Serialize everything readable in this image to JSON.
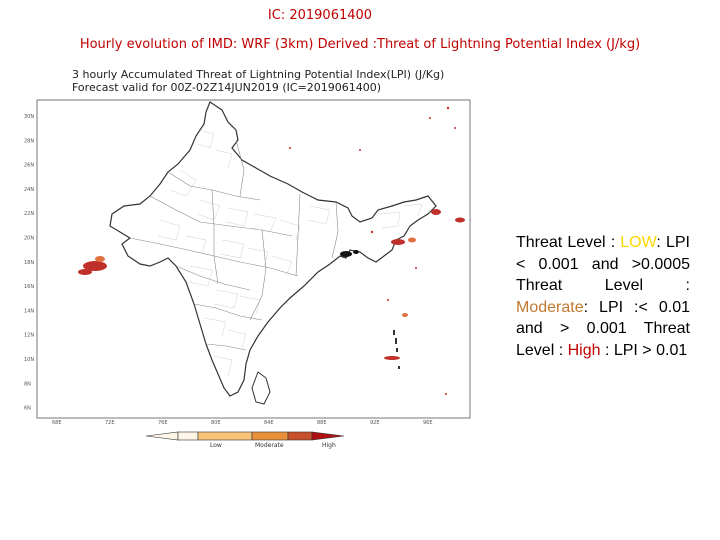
{
  "header": {
    "ic_title": "IC: 2019061400",
    "subtitle": "Hourly evolution of IMD: WRF (3km) Derived :Threat of Lightning Potential Index (J/kg)"
  },
  "map": {
    "title_line1": "3 hourly Accumulated Threat of Lightning Potential Index(LPI) (J/Kg)",
    "title_line2": "Forecast valid for 00Z-02Z14JUN2019  (IC=2019061400)",
    "lat_labels": [
      "30N",
      "28N",
      "26N",
      "24N",
      "22N",
      "20N",
      "18N",
      "16N",
      "14N",
      "12N",
      "10N",
      "8N",
      "6N"
    ],
    "lon_labels": [
      "68E",
      "72E",
      "76E",
      "80E",
      "84E",
      "88E",
      "92E",
      "96E"
    ],
    "colorbar": {
      "labels": [
        "Low",
        "Moderate",
        "High"
      ],
      "colors": [
        "#fdf5e6",
        "#f7c47a",
        "#e8913b",
        "#c8502a",
        "#b01010"
      ]
    }
  },
  "legend": {
    "low_prefix": "Threat Level : ",
    "low_word": "LOW",
    "low_suffix": ":",
    "low_range": "LPI < 0.001 and >0.0005",
    "mod_prefix": "Threat Level :",
    "mod_word": "Moderate",
    "mod_suffix": ": LPI :< 0.01 and > 0.001",
    "high_prefix": "Threat Level : ",
    "high_word": "High",
    "high_suffix": " :",
    "high_range": "LPI > 0.01",
    "colors": {
      "low": "#ffd700",
      "moderate": "#c0782f",
      "high": "#c00000"
    }
  }
}
